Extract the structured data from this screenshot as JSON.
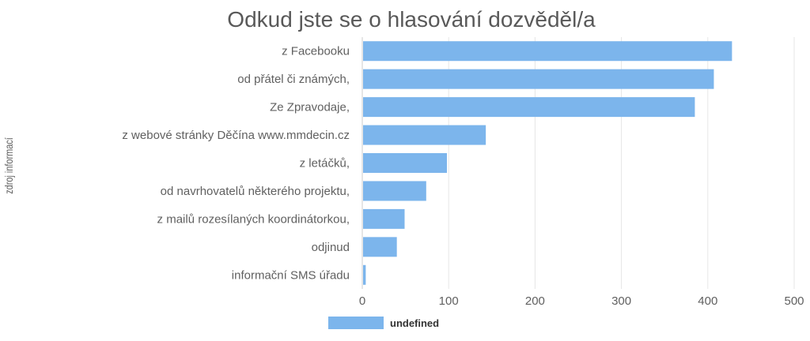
{
  "chart_data": {
    "type": "bar",
    "orientation": "horizontal",
    "title": "Odkud jste se o hlasování dozvěděl/a",
    "ylabel": "zdroj informací",
    "xlabel": "",
    "categories": [
      "z Facebooku",
      "od přátel či známých,",
      "Ze Zpravodaje,",
      "z webové stránky Děčína www.mmdecin.cz",
      "z letáčků,",
      "od navrhovatelů některého projektu,",
      "z mailů rozesílaných koordinátorkou,",
      "odjinud",
      "informační SMS úřadu"
    ],
    "series": [
      {
        "name": "undefined",
        "values": [
          428,
          407,
          385,
          143,
          98,
          74,
          49,
          40,
          4
        ]
      }
    ],
    "xlim": [
      0,
      500
    ],
    "xticks": [
      "0",
      "100",
      "200",
      "300",
      "400",
      "500"
    ],
    "grid": true,
    "legend_position": "bottom-left",
    "colors": {
      "bar": "#7cb5ec",
      "grid": "#e6e6e6",
      "axis": "#cccccc",
      "title": "#595959",
      "label": "#606060",
      "legend_text": "#333333"
    }
  }
}
